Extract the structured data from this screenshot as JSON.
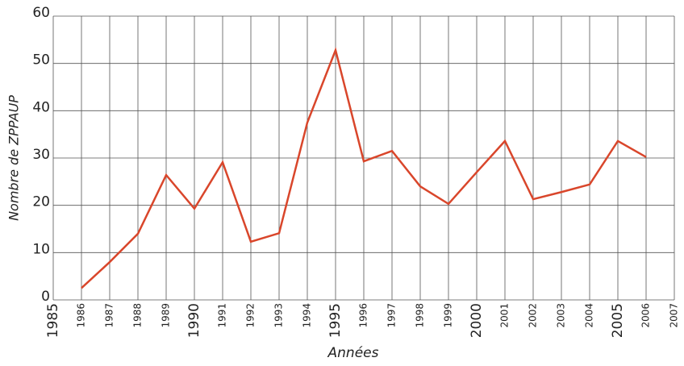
{
  "chart_data": {
    "type": "line",
    "x_label": "Années",
    "y_label": "Nombre de ZPPAUP",
    "x": [
      1986,
      1987,
      1988,
      1989,
      1990,
      1991,
      1992,
      1993,
      1994,
      1995,
      1996,
      1997,
      1998,
      1999,
      2000,
      2001,
      2002,
      2003,
      2004,
      2005,
      2006
    ],
    "values": [
      2.5,
      8,
      14,
      26.4,
      19.3,
      29.1,
      12.3,
      14.1,
      37.5,
      52.8,
      29.3,
      31.5,
      24,
      20.3,
      27,
      33.6,
      21.3,
      22.8,
      24.4,
      33.6,
      30.2
    ],
    "color": "#d9462b",
    "xlim": [
      1985,
      2007
    ],
    "xticks": [
      1985,
      1986,
      1987,
      1988,
      1989,
      1990,
      1991,
      1992,
      1993,
      1994,
      1995,
      1996,
      1997,
      1998,
      1999,
      2000,
      2001,
      2002,
      2003,
      2004,
      2005,
      2006,
      2007
    ],
    "ylim": [
      0,
      60
    ],
    "yticks": [
      0,
      10,
      20,
      30,
      40,
      50,
      60
    ],
    "grid": true
  }
}
